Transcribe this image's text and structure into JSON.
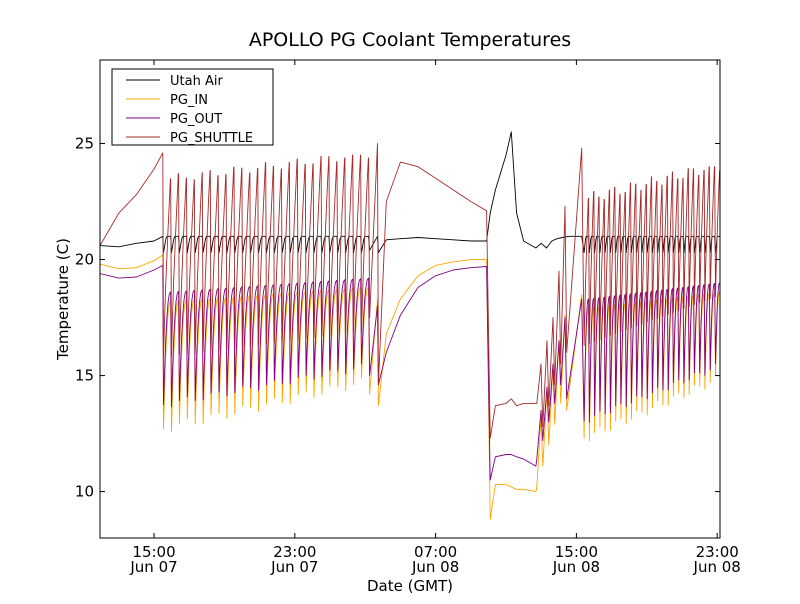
{
  "chart_data": {
    "type": "line",
    "title": "APOLLO PG Coolant Temperatures",
    "xlabel": "Date (GMT)",
    "ylabel": "Temperature (C)",
    "x_units": "hours since Jun 07 00:00 GMT",
    "xlim": [
      11.93,
      47.16
    ],
    "ylim": [
      8.0,
      28.6
    ],
    "grid": false,
    "legend_position": "top-left",
    "xticks": [
      {
        "value": 15,
        "label_line1": "15:00",
        "label_line2": "Jun 07"
      },
      {
        "value": 23,
        "label_line1": "23:00",
        "label_line2": "Jun 07"
      },
      {
        "value": 31,
        "label_line1": "07:00",
        "label_line2": "Jun 08"
      },
      {
        "value": 39,
        "label_line1": "15:00",
        "label_line2": "Jun 08"
      },
      {
        "value": 47,
        "label_line1": "23:00",
        "label_line2": "Jun 08"
      }
    ],
    "yticks": [
      {
        "value": 10,
        "label": "10"
      },
      {
        "value": 15,
        "label": "15"
      },
      {
        "value": 20,
        "label": "20"
      },
      {
        "value": 25,
        "label": "25"
      }
    ],
    "series": [
      {
        "name": "Utah Air",
        "color": "#000000"
      },
      {
        "name": "PG_IN",
        "color": "#ffa500"
      },
      {
        "name": "PG_OUT",
        "color": "#800080"
      },
      {
        "name": "PG_SHUTTLE",
        "color": "#a52a2a"
      }
    ],
    "segments": [
      {
        "kind": "smooth",
        "t": [
          11.93,
          13.0,
          14.0,
          15.0,
          15.5
        ],
        "Utah Air": [
          20.6,
          20.55,
          20.7,
          20.8,
          21.0
        ],
        "PG_IN": [
          19.8,
          19.6,
          19.65,
          19.95,
          20.2
        ],
        "PG_OUT": [
          19.4,
          19.2,
          19.25,
          19.55,
          19.75
        ],
        "PG_SHUTTLE": [
          20.6,
          22.0,
          22.8,
          23.9,
          24.6
        ]
      },
      {
        "kind": "cycling",
        "t_start": 15.5,
        "t_end": 27.2,
        "cycles": 26,
        "shuttle_peak": [
          23.3,
          24.5
        ],
        "shuttle_trough": [
          15.8,
          16.9
        ],
        "out_trough": [
          13.9,
          15.5
        ],
        "out_peak": [
          18.6,
          19.2
        ],
        "in_trough": [
          12.9,
          14.9
        ],
        "air_high": 21.0,
        "air_low": 20.3
      },
      {
        "kind": "big_cycle",
        "t_start": 27.2,
        "t_end": 27.75,
        "shuttle_peak": 25.0,
        "trough": 14.6,
        "in_trough": 13.7
      },
      {
        "kind": "smooth",
        "t": [
          27.75,
          28.2,
          29.0,
          30.0,
          31.0,
          32.0,
          33.0,
          33.9
        ],
        "Utah Air": [
          20.3,
          20.85,
          20.9,
          20.95,
          20.9,
          20.85,
          20.8,
          20.8
        ],
        "PG_IN": [
          13.7,
          16.8,
          18.3,
          19.3,
          19.75,
          19.9,
          20.0,
          20.0
        ],
        "PG_OUT": [
          14.6,
          16.0,
          17.6,
          18.8,
          19.3,
          19.55,
          19.65,
          19.7
        ],
        "PG_SHUTTLE": [
          14.6,
          22.5,
          24.2,
          24.0,
          23.5,
          23.0,
          22.5,
          22.1
        ]
      },
      {
        "kind": "drop",
        "t": [
          33.9,
          34.1,
          34.4,
          35.0,
          35.3,
          35.6,
          36.0,
          36.7
        ],
        "Utah Air": [
          20.8,
          22.0,
          23.0,
          24.5,
          25.5,
          22.0,
          20.8,
          20.5
        ],
        "PG_IN": [
          20.0,
          8.8,
          10.3,
          10.3,
          10.2,
          10.1,
          10.1,
          10.0
        ],
        "PG_OUT": [
          19.7,
          10.5,
          11.5,
          11.6,
          11.6,
          11.5,
          11.4,
          11.1
        ],
        "PG_SHUTTLE": [
          22.1,
          12.3,
          13.7,
          13.8,
          14.0,
          13.7,
          13.8,
          13.8
        ]
      },
      {
        "kind": "ramp_cycles",
        "t": [
          36.7,
          37.0,
          37.3,
          37.6,
          37.9,
          38.2,
          38.6,
          39.3
        ],
        "Utah Air": [
          20.5,
          20.7,
          20.5,
          20.8,
          20.9,
          20.95,
          21.0,
          21.0
        ],
        "PG_SHUTTLE_peaks": [
          15.5,
          16.5,
          17.5,
          19.5,
          22.3
        ],
        "PG_IN_end": 18.5,
        "PG_OUT_end": 18.3,
        "PG_SHUTTLE_end": 24.8
      },
      {
        "kind": "cycling",
        "t_start": 39.4,
        "t_end": 47.16,
        "cycles": 26,
        "shuttle_peak": [
          22.4,
          24.0
        ],
        "shuttle_trough": [
          16.3,
          18.4
        ],
        "out_trough": [
          13.2,
          15.5
        ],
        "out_peak": [
          18.3,
          19.0
        ],
        "in_trough": [
          12.5,
          15.0
        ],
        "air_high": 21.0,
        "air_low": 20.3
      }
    ]
  }
}
